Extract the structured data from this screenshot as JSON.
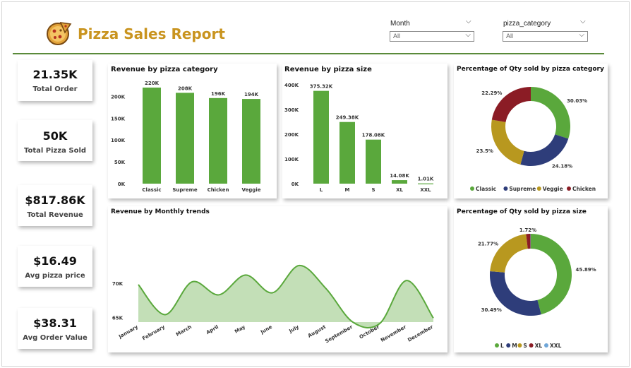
{
  "report": {
    "title": "Pizza Sales Report"
  },
  "slicers": [
    {
      "label": "Month",
      "value": "All"
    },
    {
      "label": "pizza_category",
      "value": "All"
    }
  ],
  "kpis": [
    {
      "value": "21.35K",
      "label": "Total Order"
    },
    {
      "value": "50K",
      "label": "Total Pizza Sold"
    },
    {
      "value": "$817.86K",
      "label": "Total Revenue"
    },
    {
      "value": "$16.49",
      "label": "Avg pizza price"
    },
    {
      "value": "$38.31",
      "label": "Avg Order Value"
    }
  ],
  "colors": {
    "green": "#5aa83c",
    "navy": "#2e3d7a",
    "gold": "#b8981f",
    "maroon": "#8b1c25",
    "lightblue": "#6fa6d8",
    "area": "#c3dfb7",
    "brand": "#c9941f",
    "line": "#5a8a3a"
  },
  "chart_data": [
    {
      "type": "bar",
      "title": "Revenue by pizza category",
      "categories": [
        "Classic",
        "Supreme",
        "Chicken",
        "Veggie"
      ],
      "values": [
        220000,
        208000,
        196000,
        194000
      ],
      "data_labels": [
        "220K",
        "208K",
        "196K",
        "194K"
      ],
      "ylim": [
        0,
        220000
      ],
      "yticks": [
        0,
        50000,
        100000,
        150000,
        200000
      ],
      "ytick_labels": [
        "0K",
        "50K",
        "100K",
        "150K",
        "200K"
      ],
      "color": "#5aa83c"
    },
    {
      "type": "bar",
      "title": "Revenue by pizza size",
      "categories": [
        "L",
        "M",
        "S",
        "XL",
        "XXL"
      ],
      "values": [
        375320,
        249380,
        178080,
        14080,
        1010
      ],
      "data_labels": [
        "375.32K",
        "249.38K",
        "178.08K",
        "14.08K",
        "1.01K"
      ],
      "ylim": [
        0,
        400000
      ],
      "yticks": [
        0,
        100000,
        200000,
        300000,
        400000
      ],
      "ytick_labels": [
        "0K",
        "100K",
        "200K",
        "300K",
        "400K"
      ],
      "color": "#5aa83c"
    },
    {
      "type": "pie",
      "title": "Percentage of Qty sold by pizza category",
      "labels": [
        "Classic",
        "Supreme",
        "Veggie",
        "Chicken"
      ],
      "values": [
        30.03,
        24.18,
        23.5,
        22.29
      ],
      "value_labels": [
        "30.03%",
        "24.18%",
        "23.5%",
        "22.29%"
      ],
      "colors": [
        "#5aa83c",
        "#2e3d7a",
        "#b8981f",
        "#8b1c25"
      ],
      "legend": "bottom"
    },
    {
      "type": "area",
      "title": "Revenue by Monthly trends",
      "categories": [
        "January",
        "February",
        "March",
        "April",
        "May",
        "June",
        "July",
        "August",
        "September",
        "October",
        "November",
        "December"
      ],
      "values": [
        69.8,
        65.4,
        70.2,
        68.3,
        71.2,
        68.6,
        72.6,
        69.2,
        64.3,
        64.1,
        70.4,
        64.9
      ],
      "ylim": [
        64,
        73
      ],
      "yticks": [
        65,
        70
      ],
      "ytick_labels": [
        "65K",
        "70K"
      ],
      "color": "#5aa83c"
    },
    {
      "type": "pie",
      "title": "Percentage of Qty sold by pizza size",
      "labels": [
        "L",
        "M",
        "S",
        "XL",
        "XXL"
      ],
      "values": [
        45.89,
        30.49,
        21.77,
        1.72,
        0.12
      ],
      "value_labels": [
        "45.89%",
        "30.49%",
        "21.77%",
        "1.72%",
        ""
      ],
      "colors": [
        "#5aa83c",
        "#2e3d7a",
        "#b8981f",
        "#8b1c25",
        "#6fa6d8"
      ],
      "legend": "bottom"
    }
  ]
}
